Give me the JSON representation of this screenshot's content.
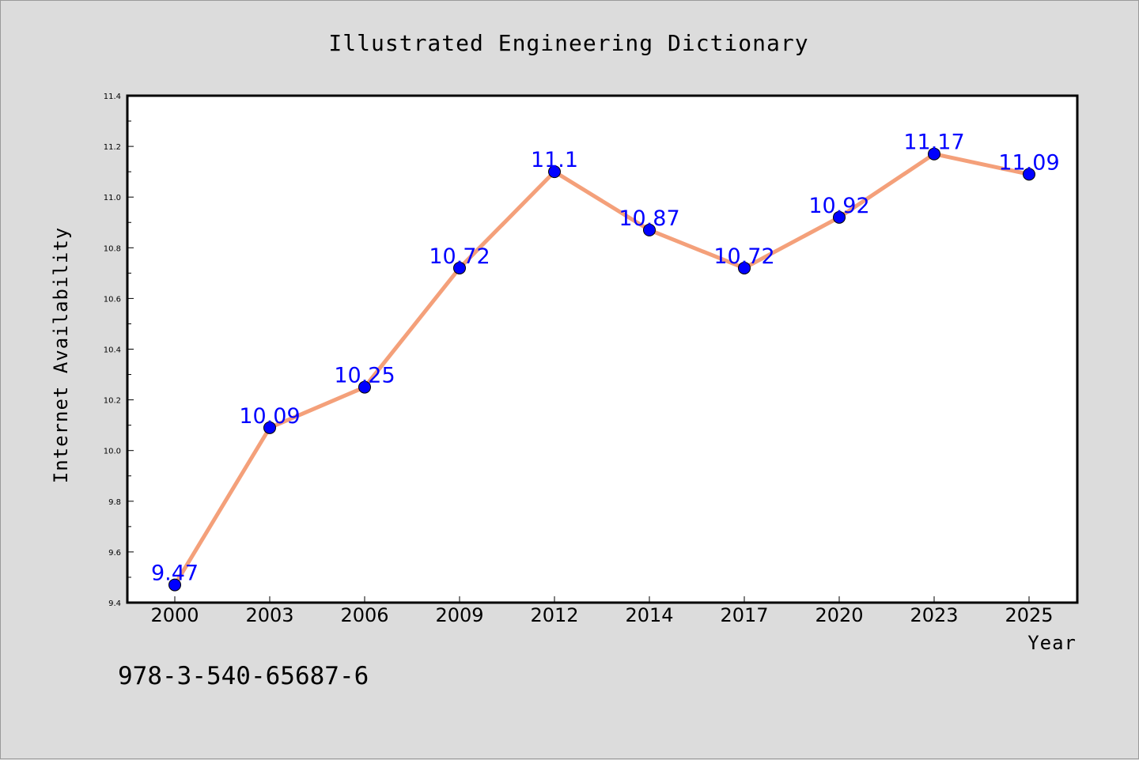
{
  "chart_data": {
    "type": "line",
    "title": "Illustrated Engineering Dictionary",
    "xlabel": "Year",
    "ylabel": "Internet Availability",
    "categories": [
      "2000",
      "2003",
      "2006",
      "2009",
      "2012",
      "2014",
      "2017",
      "2020",
      "2023",
      "2025"
    ],
    "series": [
      {
        "values": [
          9.47,
          10.09,
          10.25,
          10.72,
          11.1,
          10.87,
          10.72,
          10.92,
          11.17,
          11.09
        ],
        "data_labels": [
          "9.47",
          "10.09",
          "10.25",
          "10.72",
          "11.1",
          "10.87",
          "10.72",
          "10.92",
          "11.17",
          "11.09"
        ],
        "line_color": "#f4a07a",
        "marker_color": "#0000ff"
      }
    ],
    "ylim": [
      9.4,
      11.4
    ],
    "yticks": [
      "9.4",
      "9.6",
      "9.8",
      "10.0",
      "10.2",
      "10.4",
      "10.6",
      "10.8",
      "11.0",
      "11.2",
      "11.4"
    ],
    "grid": false,
    "legend": "none"
  },
  "footer": {
    "isbn": "978-3-540-65687-6"
  },
  "colors": {
    "background": "#dcdcdc",
    "plot_background": "#ffffff",
    "label_color": "#0000ff"
  }
}
